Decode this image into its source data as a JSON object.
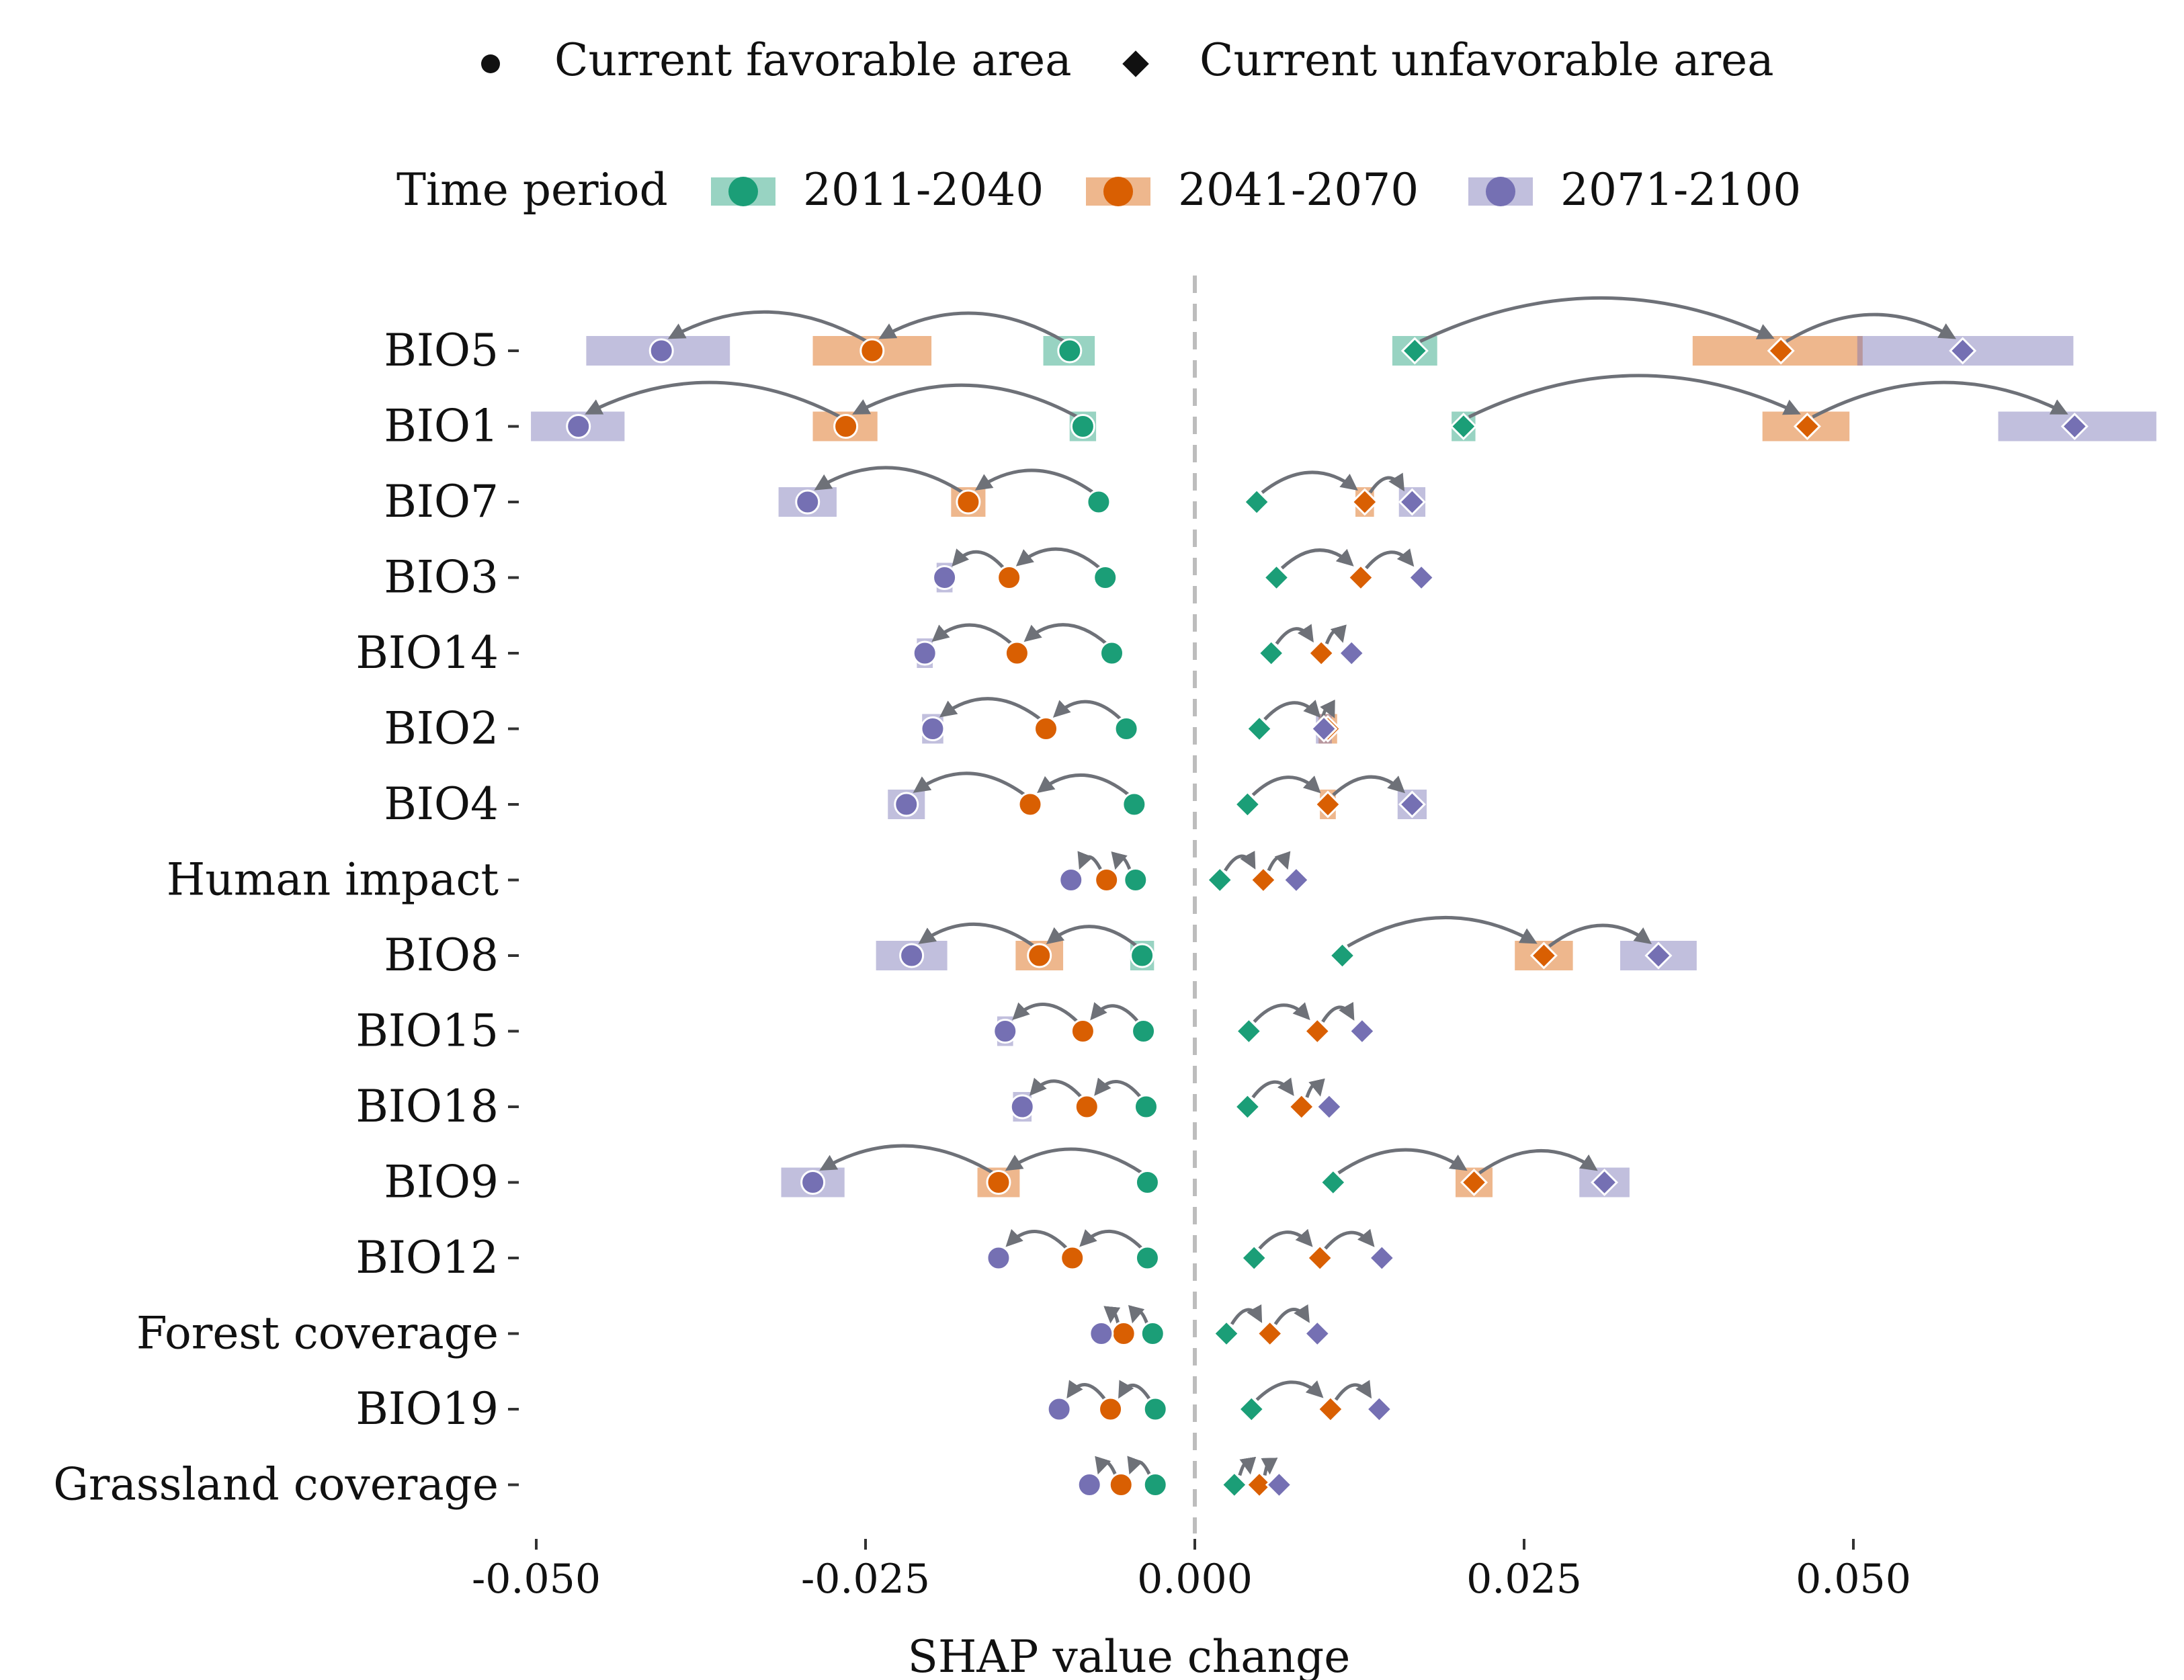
{
  "chart_data": {
    "type": "dumbbell",
    "xlabel": "SHAP value change",
    "ylabel": "",
    "xlim": [
      -0.05,
      0.073
    ],
    "x_ticks": [
      -0.05,
      -0.025,
      0.0,
      0.025,
      0.05
    ],
    "x_tick_labels": [
      "-0.050",
      "-0.025",
      "0.000",
      "0.025",
      "0.050"
    ],
    "zero_reference_line": true,
    "grid": false,
    "legend_position": "top",
    "shape_legend": [
      {
        "label": "Current favorable area",
        "shape": "circle"
      },
      {
        "label": "Current unfavorable area",
        "shape": "diamond"
      }
    ],
    "period_legend": {
      "title": "Time period",
      "items": [
        {
          "label": "2011-2040",
          "color": "#1b9e77"
        },
        {
          "label": "2041-2070",
          "color": "#d95f02"
        },
        {
          "label": "2071-2100",
          "color": "#7570b3"
        }
      ]
    },
    "series_names": [
      "2011-2040",
      "2041-2070",
      "2071-2100"
    ],
    "variables": [
      {
        "name": "BIO5",
        "favorable": {
          "mean": [
            -0.0095,
            -0.0245,
            -0.0405
          ],
          "lo": [
            -0.0113,
            -0.0288,
            -0.046
          ],
          "hi": [
            -0.0078,
            -0.0202,
            -0.0355
          ]
        },
        "unfavorable": {
          "mean": [
            0.0167,
            0.0445,
            0.0583
          ],
          "lo": [
            0.0152,
            0.038,
            0.0505
          ],
          "hi": [
            0.0182,
            0.0505,
            0.0665
          ]
        }
      },
      {
        "name": "BIO1",
        "favorable": {
          "mean": [
            -0.0085,
            -0.0265,
            -0.0468
          ],
          "lo": [
            -0.0093,
            -0.0288,
            -0.0502
          ],
          "hi": [
            -0.0077,
            -0.0243,
            -0.0435
          ]
        },
        "unfavorable": {
          "mean": [
            0.0204,
            0.0465,
            0.0668
          ],
          "lo": [
            0.0197,
            0.0433,
            0.0612
          ],
          "hi": [
            0.0211,
            0.0495,
            0.0728
          ]
        }
      },
      {
        "name": "BIO7",
        "favorable": {
          "mean": [
            -0.0073,
            -0.0172,
            -0.0294
          ],
          "lo": [
            -0.0073,
            -0.0183,
            -0.0314
          ],
          "hi": [
            -0.0073,
            -0.0161,
            -0.0274
          ]
        },
        "unfavorable": {
          "mean": [
            0.0047,
            0.0129,
            0.0165
          ],
          "lo": [
            0.0047,
            0.0124,
            0.0157
          ],
          "hi": [
            0.0047,
            0.0134,
            0.0173
          ]
        }
      },
      {
        "name": "BIO3",
        "favorable": {
          "mean": [
            -0.0068,
            -0.0141,
            -0.019
          ],
          "lo": [
            -0.0068,
            -0.0141,
            -0.0194
          ],
          "hi": [
            -0.0068,
            -0.0141,
            -0.0186
          ]
        },
        "unfavorable": {
          "mean": [
            0.0062,
            0.0126,
            0.0172
          ],
          "lo": [
            0.0062,
            0.0126,
            0.0172
          ],
          "hi": [
            0.0062,
            0.0126,
            0.0172
          ]
        }
      },
      {
        "name": "BIO14",
        "favorable": {
          "mean": [
            -0.0063,
            -0.0135,
            -0.0205
          ],
          "lo": [
            -0.0063,
            -0.0135,
            -0.0209
          ],
          "hi": [
            -0.0063,
            -0.0135,
            -0.0201
          ]
        },
        "unfavorable": {
          "mean": [
            0.0058,
            0.0096,
            0.0119
          ],
          "lo": [
            0.0058,
            0.0096,
            0.0119
          ],
          "hi": [
            0.0058,
            0.0096,
            0.0119
          ]
        }
      },
      {
        "name": "BIO2",
        "favorable": {
          "mean": [
            -0.0052,
            -0.0113,
            -0.0199
          ],
          "lo": [
            -0.0052,
            -0.0113,
            -0.0205
          ],
          "hi": [
            -0.0052,
            -0.0113,
            -0.0193
          ]
        },
        "unfavorable": {
          "mean": [
            0.0049,
            0.0101,
            0.0098
          ],
          "lo": [
            0.0049,
            0.0096,
            0.0094
          ],
          "hi": [
            0.0049,
            0.0106,
            0.0102
          ]
        }
      },
      {
        "name": "BIO4",
        "favorable": {
          "mean": [
            -0.0046,
            -0.0125,
            -0.0219
          ],
          "lo": [
            -0.0046,
            -0.0125,
            -0.0231
          ],
          "hi": [
            -0.0046,
            -0.0125,
            -0.0207
          ]
        },
        "unfavorable": {
          "mean": [
            0.004,
            0.0101,
            0.0165
          ],
          "lo": [
            0.004,
            0.0097,
            0.0156
          ],
          "hi": [
            0.004,
            0.0105,
            0.0174
          ]
        }
      },
      {
        "name": "Human impact",
        "favorable": {
          "mean": [
            -0.0045,
            -0.0067,
            -0.0094
          ],
          "lo": [
            -0.0045,
            -0.0067,
            -0.0094
          ],
          "hi": [
            -0.0045,
            -0.0067,
            -0.0094
          ]
        },
        "unfavorable": {
          "mean": [
            0.0019,
            0.0052,
            0.0077
          ],
          "lo": [
            0.0019,
            0.0052,
            0.0077
          ],
          "hi": [
            0.0019,
            0.0052,
            0.0077
          ]
        }
      },
      {
        "name": "BIO8",
        "favorable": {
          "mean": [
            -0.004,
            -0.0118,
            -0.0215
          ],
          "lo": [
            -0.0047,
            -0.0134,
            -0.024
          ],
          "hi": [
            -0.0033,
            -0.0102,
            -0.019
          ]
        },
        "unfavorable": {
          "mean": [
            0.0112,
            0.0265,
            0.0352
          ],
          "lo": [
            0.0112,
            0.0245,
            0.0325
          ],
          "hi": [
            0.0112,
            0.0285,
            0.0379
          ]
        }
      },
      {
        "name": "BIO15",
        "favorable": {
          "mean": [
            -0.0039,
            -0.0085,
            -0.0144
          ],
          "lo": [
            -0.0039,
            -0.0085,
            -0.0148
          ],
          "hi": [
            -0.0039,
            -0.0085,
            -0.014
          ]
        },
        "unfavorable": {
          "mean": [
            0.0041,
            0.0093,
            0.0127
          ],
          "lo": [
            0.0041,
            0.0093,
            0.0127
          ],
          "hi": [
            0.0041,
            0.0093,
            0.0127
          ]
        }
      },
      {
        "name": "BIO18",
        "favorable": {
          "mean": [
            -0.0037,
            -0.0082,
            -0.0131
          ],
          "lo": [
            -0.0037,
            -0.0082,
            -0.0136
          ],
          "hi": [
            -0.0037,
            -0.0082,
            -0.0126
          ]
        },
        "unfavorable": {
          "mean": [
            0.004,
            0.0081,
            0.0102
          ],
          "lo": [
            0.004,
            0.0081,
            0.0102
          ],
          "hi": [
            0.004,
            0.0081,
            0.0102
          ]
        }
      },
      {
        "name": "BIO9",
        "favorable": {
          "mean": [
            -0.0036,
            -0.0149,
            -0.029
          ],
          "lo": [
            -0.0036,
            -0.0163,
            -0.0312
          ],
          "hi": [
            -0.0036,
            -0.0135,
            -0.0268
          ]
        },
        "unfavorable": {
          "mean": [
            0.0105,
            0.0212,
            0.0311
          ],
          "lo": [
            0.0105,
            0.02,
            0.0294
          ],
          "hi": [
            0.0105,
            0.0224,
            0.0328
          ]
        }
      },
      {
        "name": "BIO12",
        "favorable": {
          "mean": [
            -0.0036,
            -0.0093,
            -0.0149
          ],
          "lo": [
            -0.0036,
            -0.0093,
            -0.0149
          ],
          "hi": [
            -0.0036,
            -0.0093,
            -0.0149
          ]
        },
        "unfavorable": {
          "mean": [
            0.0045,
            0.0095,
            0.0142
          ],
          "lo": [
            0.0045,
            0.0095,
            0.0142
          ],
          "hi": [
            0.0045,
            0.0095,
            0.0142
          ]
        }
      },
      {
        "name": "Forest coverage",
        "favorable": {
          "mean": [
            -0.0032,
            -0.0054,
            -0.0071
          ],
          "lo": [
            -0.0032,
            -0.0054,
            -0.0071
          ],
          "hi": [
            -0.0032,
            -0.0054,
            -0.0071
          ]
        },
        "unfavorable": {
          "mean": [
            0.0024,
            0.0057,
            0.0093
          ],
          "lo": [
            0.0024,
            0.0057,
            0.0093
          ],
          "hi": [
            0.0024,
            0.0057,
            0.0093
          ]
        }
      },
      {
        "name": "BIO19",
        "favorable": {
          "mean": [
            -0.003,
            -0.0064,
            -0.0103
          ],
          "lo": [
            -0.003,
            -0.0064,
            -0.0103
          ],
          "hi": [
            -0.003,
            -0.0064,
            -0.0103
          ]
        },
        "unfavorable": {
          "mean": [
            0.0043,
            0.0103,
            0.014
          ],
          "lo": [
            0.0043,
            0.0103,
            0.014
          ],
          "hi": [
            0.0043,
            0.0103,
            0.014
          ]
        }
      },
      {
        "name": "Grassland coverage",
        "favorable": {
          "mean": [
            -0.003,
            -0.0056,
            -0.008
          ],
          "lo": [
            -0.003,
            -0.0056,
            -0.008
          ],
          "hi": [
            -0.003,
            -0.0056,
            -0.008
          ]
        },
        "unfavorable": {
          "mean": [
            0.003,
            0.0049,
            0.0064
          ],
          "lo": [
            0.003,
            0.0049,
            0.0064
          ],
          "hi": [
            0.003,
            0.0049,
            0.0064
          ]
        }
      }
    ]
  }
}
